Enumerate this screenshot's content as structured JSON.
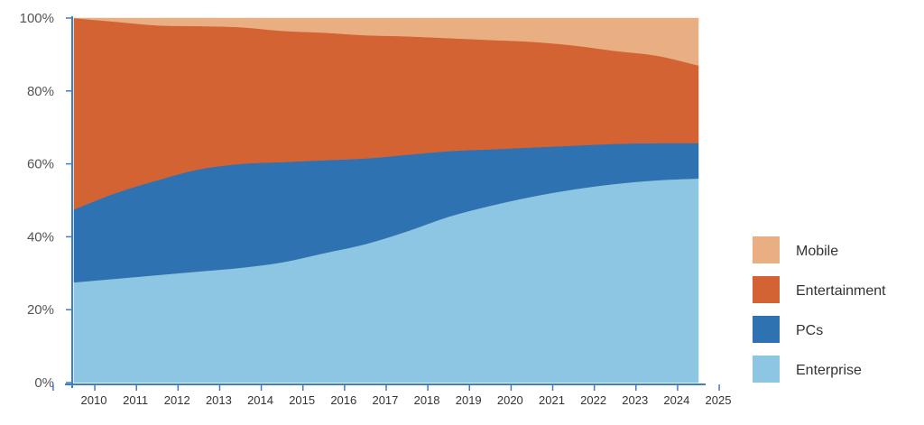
{
  "chart_data": {
    "type": "area",
    "stacked": true,
    "x": [
      "2010",
      "2011",
      "2012",
      "2013",
      "2014",
      "2015",
      "2016",
      "2017",
      "2018",
      "2019",
      "2020",
      "2021",
      "2022",
      "2023",
      "2024",
      "2025"
    ],
    "series": [
      {
        "name": "Enterprise",
        "color": "#8DC6E2",
        "values": [
          27.5,
          28.5,
          29.5,
          30.5,
          31.5,
          33,
          35.5,
          38,
          41.5,
          45.5,
          48.5,
          51,
          53,
          54.5,
          55.5,
          56
        ]
      },
      {
        "name": "PCs",
        "color": "#2E72B2",
        "values": [
          20,
          23.5,
          26,
          28,
          28.5,
          27.5,
          25.5,
          23.5,
          21,
          18,
          15.5,
          13.5,
          12,
          11,
          10.2,
          9.7
        ]
      },
      {
        "name": "Entertainment",
        "color": "#D46333",
        "values": [
          52.5,
          47,
          42.5,
          39.3,
          37.5,
          36,
          35,
          33.8,
          32.5,
          31,
          30,
          29,
          27.5,
          25.5,
          24,
          21.3
        ]
      },
      {
        "name": "Mobile",
        "color": "#E9AF83",
        "values": [
          0,
          1,
          2,
          2.2,
          2.5,
          3.5,
          4,
          4.7,
          5,
          5.5,
          6,
          6.5,
          7.5,
          9,
          10.3,
          13
        ]
      }
    ],
    "y_ticks": [
      "0%",
      "20%",
      "40%",
      "60%",
      "80%",
      "100%"
    ],
    "ylim": [
      0,
      100
    ],
    "grid": false,
    "legend_position": "right",
    "legend_order": [
      "Mobile",
      "Entertainment",
      "PCs",
      "Enterprise"
    ],
    "axis_color": "#3E7DC8"
  }
}
